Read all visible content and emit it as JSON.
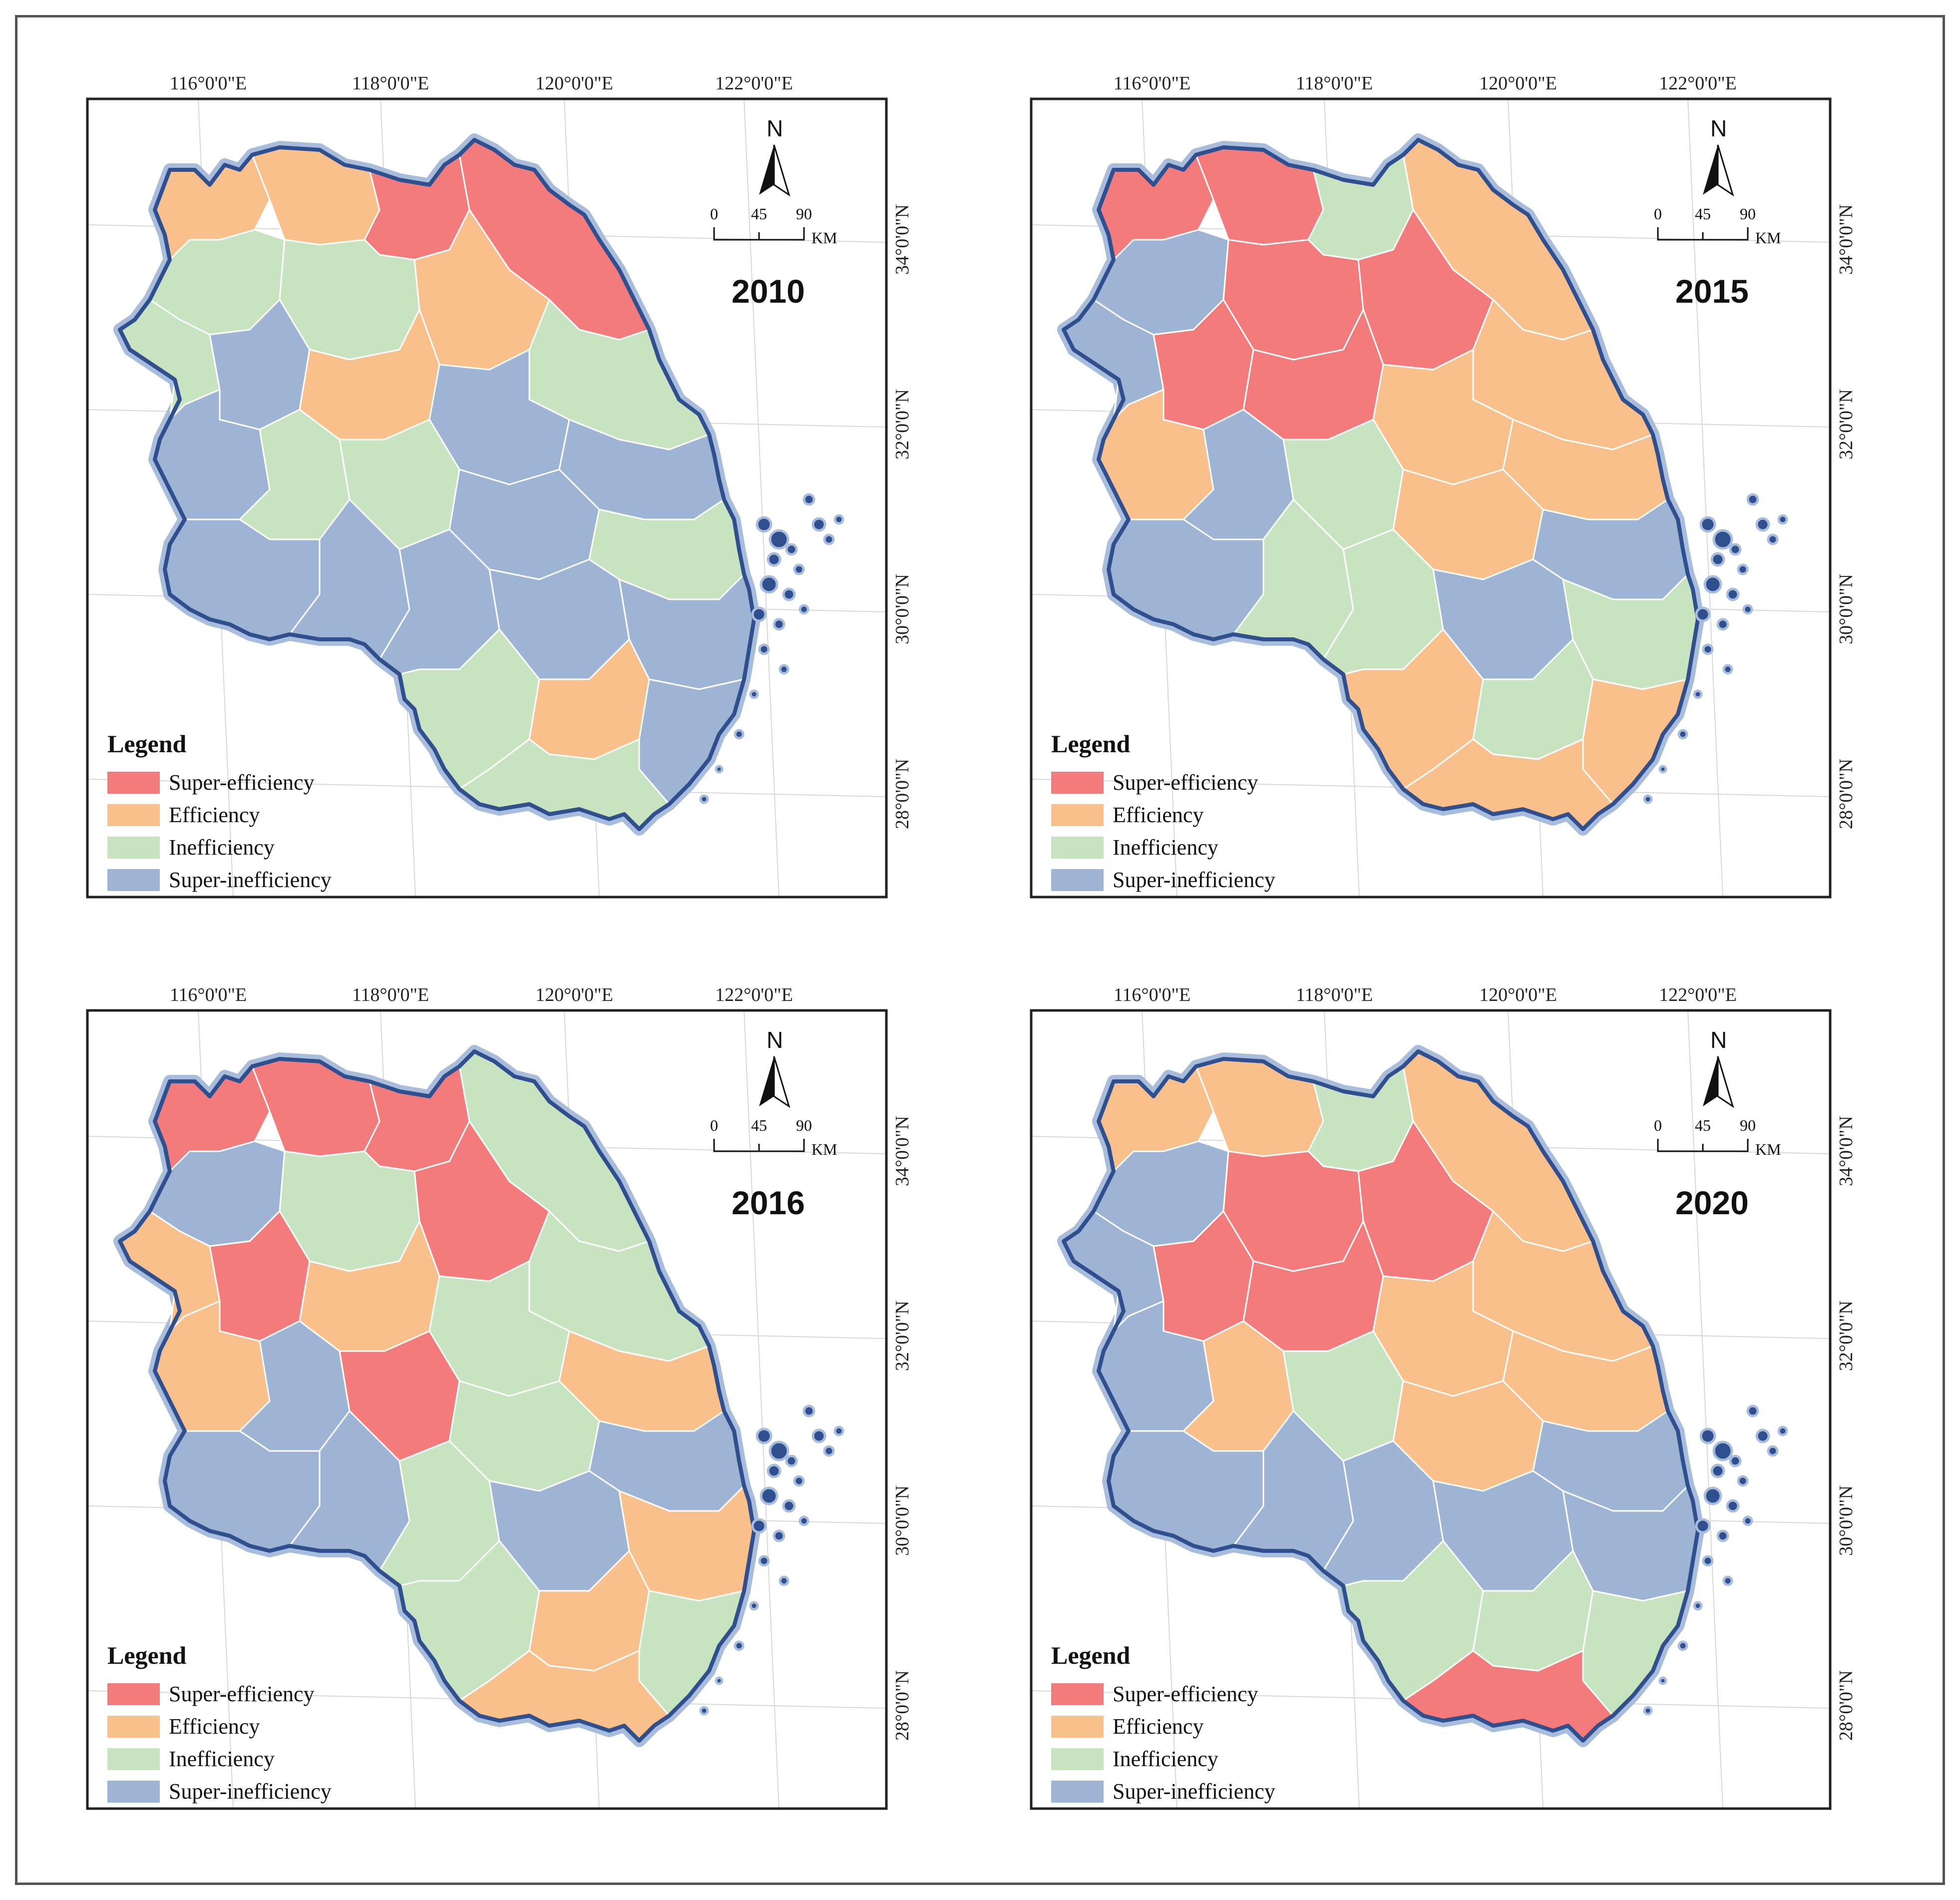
{
  "map": {
    "longitude_labels": [
      "116°0'0\"E",
      "118°0'0\"E",
      "120°0'0\"E",
      "122°0'0\"E"
    ],
    "latitude_labels": [
      "34°0'0\"N",
      "32°0'0\"N",
      "30°0'0\"N",
      "28°0'0\"N"
    ],
    "north_arrow_label": "N",
    "scale_bar": {
      "ticks": [
        "0",
        "45",
        "90"
      ],
      "unit": "KM"
    },
    "legend": {
      "title": "Legend",
      "items": [
        {
          "label": "Super-efficiency",
          "color": "#f47b7b"
        },
        {
          "label": "Efficiency",
          "color": "#f9c08c"
        },
        {
          "label": "Inefficiency",
          "color": "#c7e3bf"
        },
        {
          "label": "Super-inefficiency",
          "color": "#9db4d4"
        }
      ]
    },
    "colors": {
      "boundary": "#2f4f8f",
      "boundary_glow": "#a8bcdc",
      "sea": "#ffffff"
    }
  },
  "panels": [
    {
      "year": "2010"
    },
    {
      "year": "2015"
    },
    {
      "year": "2016"
    },
    {
      "year": "2020"
    }
  ]
}
